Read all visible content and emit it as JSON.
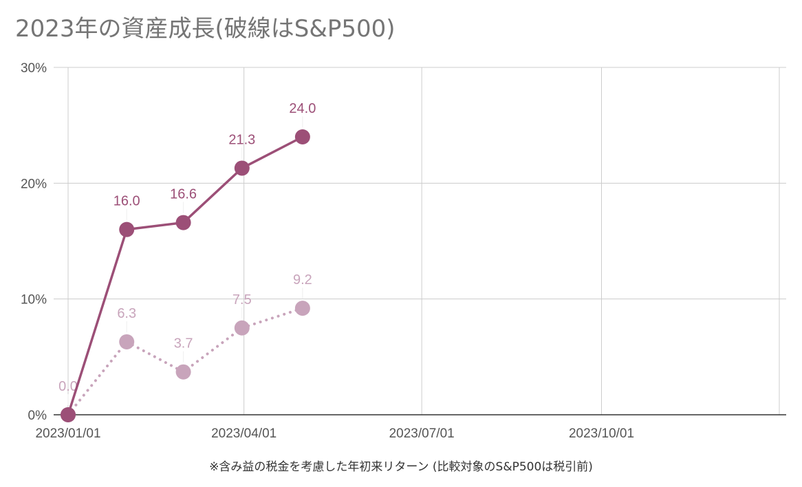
{
  "chart_data": {
    "type": "line",
    "title": "2023年の資産成長(破線はS&P500)",
    "xlabel": "※含み益の税金を考慮した年初来リターン (比較対象のS&P500は税引前)",
    "ylabel": "",
    "ylim": [
      0,
      30
    ],
    "y_ticks": [
      "0%",
      "10%",
      "20%",
      "30%"
    ],
    "x_ticks": [
      "2023/01/01",
      "2023/04/01",
      "2023/07/01",
      "2023/10/01"
    ],
    "x_tick_dates": [
      "2023-01-01",
      "2023-04-01",
      "2023-07-01",
      "2023-10-01"
    ],
    "xlim": [
      "2023-01-01",
      "2023-12-31"
    ],
    "grid": true,
    "series": [
      {
        "style": "solid",
        "color": "#9c4f77",
        "x": [
          "2023-01-01",
          "2023-01-31",
          "2023-03-01",
          "2023-03-31",
          "2023-05-01"
        ],
        "values": [
          0.0,
          16.0,
          16.6,
          21.3,
          24.0
        ],
        "labels": [
          "",
          "16.0",
          "16.6",
          "21.3",
          "24.0"
        ]
      },
      {
        "style": "dotted",
        "color": "#c8a4bb",
        "x": [
          "2023-01-01",
          "2023-01-31",
          "2023-03-01",
          "2023-03-31",
          "2023-05-01"
        ],
        "values": [
          0.0,
          6.3,
          3.7,
          7.5,
          9.2
        ],
        "labels": [
          "0.0",
          "6.3",
          "3.7",
          "7.5",
          "9.2"
        ]
      }
    ]
  }
}
